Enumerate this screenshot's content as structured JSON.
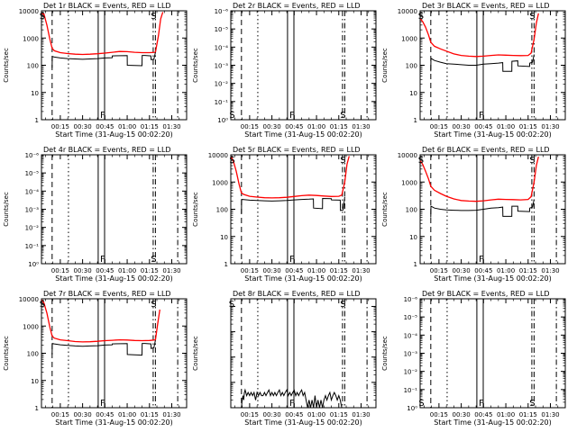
{
  "colors": {
    "events": "#000000",
    "lld": "#ff0000",
    "axis": "#000000",
    "background": "#ffffff"
  },
  "common": {
    "xlabel": "Start Time (31-Aug-15 00:02:20)",
    "ylabel": "Counts/sec",
    "x_ticks": [
      {
        "t": 15,
        "label": "00:15"
      },
      {
        "t": 30,
        "label": "00:30"
      },
      {
        "t": 45,
        "label": "00:45"
      },
      {
        "t": 60,
        "label": "01:00"
      },
      {
        "t": 75,
        "label": "01:15"
      },
      {
        "t": 90,
        "label": "01:30"
      }
    ],
    "xlim": [
      2.33,
      100
    ],
    "vlines": [
      {
        "t": 9.5,
        "style": "dashed"
      },
      {
        "t": 20.5,
        "style": "dotted"
      },
      {
        "t": 40.5,
        "style": "solid"
      },
      {
        "t": 44.8,
        "style": "solid"
      },
      {
        "t": 77.5,
        "style": "dashdot"
      },
      {
        "t": 79.0,
        "style": "dashdot"
      },
      {
        "t": 94.0,
        "style": "dashdot"
      }
    ]
  },
  "chart_data": [
    {
      "type": "line",
      "title": "Det 1r BLACK = Events, RED = LLD",
      "scale": "log",
      "ylim": [
        1,
        10000
      ],
      "y_ticks": [
        {
          "v": 1,
          "label": "1"
        },
        {
          "v": 10,
          "label": "10"
        },
        {
          "v": 100,
          "label": "100"
        },
        {
          "v": 1000,
          "label": "1000"
        },
        {
          "v": 10000,
          "label": "10000"
        }
      ],
      "markers": [
        {
          "t": 2.9,
          "label": "S"
        },
        {
          "t": 43.5,
          "label": "F"
        },
        {
          "t": 77.8,
          "label": "S"
        }
      ],
      "series": [
        {
          "name": "LLD",
          "color": "#ff0000",
          "x": [
            2.5,
            4,
            6,
            8,
            9.5,
            11,
            15,
            20,
            25,
            30,
            35,
            40,
            45,
            50,
            55,
            60,
            65,
            70,
            75,
            79,
            81,
            82.5,
            84
          ],
          "y": [
            8000,
            7500,
            3000,
            900,
            420,
            340,
            290,
            270,
            255,
            250,
            255,
            265,
            280,
            300,
            320,
            315,
            300,
            290,
            290,
            300,
            1200,
            5000,
            9000
          ]
        },
        {
          "name": "Events",
          "color": "#000000",
          "x": [
            9.5,
            9.6,
            11,
            15,
            20,
            25,
            30,
            35,
            40,
            45,
            49.9,
            50,
            60,
            60.1,
            65,
            70,
            70.1,
            72,
            76,
            76.1,
            78,
            79
          ],
          "y": [
            80,
            210,
            200,
            185,
            175,
            170,
            165,
            170,
            175,
            185,
            190,
            220,
            225,
            100,
            98,
            96,
            230,
            230,
            220,
            160,
            165,
            300
          ]
        }
      ]
    },
    {
      "type": "line",
      "title": "Det 2r BLACK = Events, RED = LLD",
      "scale": "log",
      "ylim": [
        1,
        1000000
      ],
      "y_ticks": [
        {
          "v": 1,
          "label": "10⁰"
        },
        {
          "v": 10,
          "label": "10⁻¹"
        },
        {
          "v": 100,
          "label": "10⁻²"
        },
        {
          "v": 1000,
          "label": "10⁻³"
        },
        {
          "v": 10000,
          "label": "10⁻⁴"
        },
        {
          "v": 100000,
          "label": "10⁻⁵"
        },
        {
          "v": 1000000,
          "label": "10⁻⁶"
        }
      ],
      "markers": [
        {
          "t": 3.3,
          "label": "S"
        },
        {
          "t": 43.5,
          "label": "F"
        },
        {
          "t": 77.8,
          "label": "S"
        }
      ],
      "series": []
    },
    {
      "type": "line",
      "title": "Det 3r BLACK = Events, RED = LLD",
      "scale": "log",
      "ylim": [
        1,
        10000
      ],
      "y_ticks": [
        {
          "v": 1,
          "label": "1"
        },
        {
          "v": 10,
          "label": "10"
        },
        {
          "v": 100,
          "label": "100"
        },
        {
          "v": 1000,
          "label": "1000"
        },
        {
          "v": 10000,
          "label": "10000"
        }
      ],
      "markers": [
        {
          "t": 2.9,
          "label": "S"
        },
        {
          "t": 43.5,
          "label": "F"
        },
        {
          "t": 77.8,
          "label": "S"
        }
      ],
      "series": [
        {
          "name": "LLD",
          "color": "#ff0000",
          "x": [
            2.5,
            4,
            6,
            8,
            9.5,
            12,
            16,
            20,
            25,
            30,
            35,
            40,
            45,
            50,
            55,
            60,
            65,
            70,
            75,
            77,
            79,
            80.5,
            82
          ],
          "y": [
            5000,
            4000,
            2500,
            1300,
            700,
            500,
            400,
            330,
            260,
            230,
            215,
            210,
            215,
            230,
            240,
            235,
            230,
            225,
            230,
            280,
            900,
            3500,
            8000
          ]
        },
        {
          "name": "Events",
          "color": "#000000",
          "x": [
            9.5,
            9.6,
            12,
            16,
            20,
            25,
            30,
            35,
            40,
            45,
            50,
            55,
            57.9,
            58,
            64,
            64.1,
            68,
            68.1,
            76,
            76.1,
            78,
            79
          ],
          "y": [
            60,
            180,
            150,
            130,
            115,
            110,
            105,
            100,
            100,
            110,
            115,
            120,
            125,
            60,
            60,
            140,
            145,
            95,
            90,
            120,
            130,
            250
          ]
        }
      ]
    },
    {
      "type": "line",
      "title": "Det 4r BLACK = Events, RED = LLD",
      "scale": "log",
      "ylim": [
        1,
        1000000
      ],
      "y_ticks": [
        {
          "v": 1,
          "label": "10⁰"
        },
        {
          "v": 10,
          "label": "10⁻¹"
        },
        {
          "v": 100,
          "label": "10⁻²"
        },
        {
          "v": 1000,
          "label": "10⁻³"
        },
        {
          "v": 10000,
          "label": "10⁻⁴"
        },
        {
          "v": 100000,
          "label": "10⁻⁵"
        },
        {
          "v": 1000000,
          "label": "10⁻⁶"
        }
      ],
      "markers": [
        {
          "t": 43.5,
          "label": "F"
        },
        {
          "t": 77.8,
          "label": "S"
        }
      ],
      "series": []
    },
    {
      "type": "line",
      "title": "Det 5r BLACK = Events, RED = LLD",
      "scale": "log",
      "ylim": [
        1,
        10000
      ],
      "y_ticks": [
        {
          "v": 1,
          "label": "1"
        },
        {
          "v": 10,
          "label": "10"
        },
        {
          "v": 100,
          "label": "100"
        },
        {
          "v": 1000,
          "label": "1000"
        },
        {
          "v": 10000,
          "label": "10000"
        }
      ],
      "markers": [
        {
          "t": 3.3,
          "label": "S"
        },
        {
          "t": 43.5,
          "label": "F"
        },
        {
          "t": 77.8,
          "label": "S"
        }
      ],
      "series": [
        {
          "name": "LLD",
          "color": "#ff0000",
          "x": [
            2.5,
            4,
            6,
            8,
            9.5,
            11,
            15,
            20,
            25,
            30,
            35,
            40,
            45,
            50,
            55,
            60,
            65,
            70,
            75,
            77,
            79,
            80.5,
            82
          ],
          "y": [
            8500,
            6000,
            2500,
            800,
            400,
            350,
            300,
            280,
            265,
            260,
            265,
            275,
            295,
            315,
            330,
            320,
            305,
            295,
            300,
            330,
            1000,
            4500,
            9000
          ]
        },
        {
          "name": "Events",
          "color": "#000000",
          "x": [
            9.5,
            9.6,
            11,
            15,
            20,
            25,
            30,
            35,
            40,
            45,
            50,
            55,
            57.9,
            58,
            64,
            64.1,
            70,
            70.1,
            76,
            76.1,
            78,
            79
          ],
          "y": [
            70,
            230,
            225,
            215,
            210,
            205,
            200,
            205,
            210,
            220,
            230,
            235,
            240,
            110,
            105,
            250,
            245,
            220,
            215,
            90,
            95,
            280
          ]
        }
      ]
    },
    {
      "type": "line",
      "title": "Det 6r BLACK = Events, RED = LLD",
      "scale": "log",
      "ylim": [
        1,
        10000
      ],
      "y_ticks": [
        {
          "v": 1,
          "label": "1"
        },
        {
          "v": 10,
          "label": "10"
        },
        {
          "v": 100,
          "label": "100"
        },
        {
          "v": 1000,
          "label": "1000"
        },
        {
          "v": 10000,
          "label": "10000"
        }
      ],
      "markers": [
        {
          "t": 2.9,
          "label": "S"
        },
        {
          "t": 43.5,
          "label": "F"
        },
        {
          "t": 77.8,
          "label": "S"
        }
      ],
      "series": [
        {
          "name": "LLD",
          "color": "#ff0000",
          "x": [
            2.5,
            4,
            6,
            8,
            9.5,
            12,
            16,
            20,
            25,
            30,
            35,
            40,
            45,
            50,
            55,
            60,
            65,
            70,
            75,
            77,
            79,
            80.5,
            82
          ],
          "y": [
            6000,
            4500,
            2500,
            1300,
            700,
            500,
            380,
            300,
            240,
            210,
            200,
            195,
            205,
            220,
            235,
            230,
            225,
            220,
            230,
            290,
            1000,
            4000,
            8500
          ]
        },
        {
          "name": "Events",
          "color": "#000000",
          "x": [
            9.5,
            9.6,
            12,
            16,
            20,
            25,
            30,
            35,
            40,
            45,
            50,
            55,
            57.9,
            58,
            64,
            64.1,
            68,
            68.1,
            76,
            76.1,
            78,
            79
          ],
          "y": [
            50,
            130,
            110,
            100,
            95,
            92,
            90,
            90,
            92,
            100,
            110,
            115,
            120,
            55,
            55,
            130,
            130,
            85,
            82,
            110,
            120,
            230
          ]
        }
      ]
    },
    {
      "type": "line",
      "title": "Det 7r BLACK = Events, RED = LLD",
      "scale": "log",
      "ylim": [
        1,
        10000
      ],
      "y_ticks": [
        {
          "v": 1,
          "label": "1"
        },
        {
          "v": 10,
          "label": "10"
        },
        {
          "v": 100,
          "label": "100"
        },
        {
          "v": 1000,
          "label": "1000"
        },
        {
          "v": 10000,
          "label": "10000"
        }
      ],
      "markers": [
        {
          "t": 2.9,
          "label": "S"
        },
        {
          "t": 43.5,
          "label": "F"
        },
        {
          "t": 77.8,
          "label": "S"
        }
      ],
      "series": [
        {
          "name": "LLD",
          "color": "#ff0000",
          "x": [
            2.5,
            4,
            6,
            8,
            9.5,
            11,
            15,
            20,
            25,
            30,
            35,
            40,
            45,
            50,
            55,
            60,
            65,
            70,
            75,
            79,
            80.5,
            82
          ],
          "y": [
            9000,
            7000,
            3000,
            900,
            430,
            360,
            310,
            290,
            270,
            260,
            265,
            275,
            290,
            300,
            310,
            305,
            295,
            290,
            295,
            310,
            1200,
            4000
          ]
        },
        {
          "name": "Events",
          "color": "#000000",
          "x": [
            9.5,
            9.6,
            11,
            15,
            20,
            25,
            30,
            35,
            40,
            45,
            49.9,
            50,
            60,
            60.1,
            65,
            70,
            70.1,
            72,
            76,
            76.1,
            78,
            79
          ],
          "y": [
            90,
            230,
            220,
            205,
            195,
            185,
            180,
            185,
            190,
            200,
            205,
            220,
            225,
            90,
            88,
            85,
            230,
            230,
            220,
            150,
            160,
            300
          ]
        }
      ]
    },
    {
      "type": "line",
      "title": "Det 8r BLACK = Events, RED = LLD",
      "scale": "log",
      "ylim": [
        1,
        20000
      ],
      "y_ticks": [
        {
          "v": 1,
          "label": ""
        },
        {
          "v": 10,
          "label": ""
        },
        {
          "v": 100,
          "label": ""
        },
        {
          "v": 1000,
          "label": ""
        },
        {
          "v": 10000,
          "label": ""
        }
      ],
      "markers": [
        {
          "t": 2.9,
          "label": "S"
        },
        {
          "t": 43.5,
          "label": "F"
        },
        {
          "t": 77.8,
          "label": "S"
        }
      ],
      "series": [
        {
          "name": "Events",
          "color": "#000000",
          "x": [
            9.5,
            10.0,
            10.5,
            11.0,
            11.5,
            12.0,
            13.0,
            14.0,
            15.0,
            16.0,
            17.0,
            18.0,
            19.0,
            20.0,
            21.0,
            22.0,
            23.0,
            24.0,
            25.0,
            26.0,
            27.0,
            28.0,
            29.0,
            30.0,
            31.0,
            32.0,
            33.0,
            34.0,
            35.0,
            36.0,
            37.0,
            38.0,
            39.0,
            40.0,
            41.0,
            42.0,
            43.0,
            44.0,
            45.0,
            46.0,
            47.0,
            48.0,
            49.0,
            50.0,
            51.0,
            52.0,
            53.0,
            54.0,
            55.0,
            56.0,
            57.0,
            58.0,
            59.0,
            60.0,
            61.0,
            62.0,
            63.0,
            64.0,
            65.0,
            66.0,
            67.0,
            68.0,
            69.0,
            70.0,
            71.0,
            72.0,
            73.0,
            74.0,
            75.0,
            76.0,
            77.0
          ],
          "y": [
            1,
            2,
            3,
            2,
            4,
            5,
            3,
            4,
            3,
            4,
            3,
            4,
            2,
            4,
            3,
            4,
            3,
            3,
            4,
            3,
            4,
            5,
            3,
            4,
            3,
            4,
            3,
            4,
            5,
            3,
            4,
            3,
            4,
            5,
            3,
            4,
            3,
            4,
            5,
            3,
            4,
            3,
            4,
            5,
            3,
            4,
            2,
            1,
            2,
            1,
            2,
            1,
            3,
            1,
            2,
            1,
            2,
            1,
            2,
            3,
            2,
            3,
            4,
            2,
            3,
            4,
            3,
            2,
            3,
            2,
            1
          ]
        }
      ]
    },
    {
      "type": "line",
      "title": "Det 9r BLACK = Events, RED = LLD",
      "scale": "log",
      "ylim": [
        1,
        1000000
      ],
      "y_ticks": [
        {
          "v": 1,
          "label": "10⁰"
        },
        {
          "v": 10,
          "label": "10⁻¹"
        },
        {
          "v": 100,
          "label": "10⁻²"
        },
        {
          "v": 1000,
          "label": "10⁻³"
        },
        {
          "v": 10000,
          "label": "10⁻⁴"
        },
        {
          "v": 100000,
          "label": "10⁻⁵"
        },
        {
          "v": 1000000,
          "label": "10⁻⁶"
        }
      ],
      "markers": [
        {
          "t": 3.3,
          "label": "S"
        },
        {
          "t": 43.5,
          "label": "F"
        },
        {
          "t": 77.8,
          "label": "S"
        }
      ],
      "series": []
    }
  ]
}
